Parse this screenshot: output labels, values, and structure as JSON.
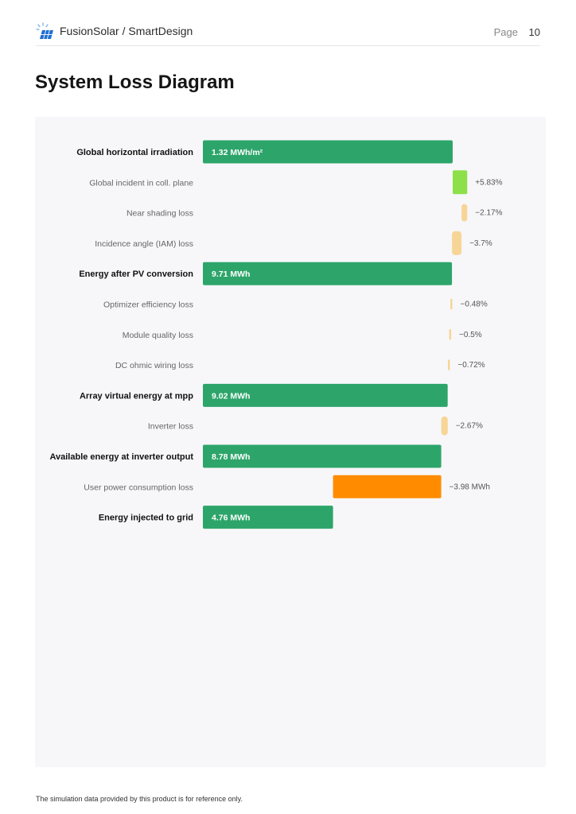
{
  "header": {
    "brand": "FusionSolar / SmartDesign",
    "page_label": "Page",
    "page_number": "10",
    "logo_icon": "solar-panel-logo-icon"
  },
  "title": "System Loss Diagram",
  "footnote": "The simulation data provided by this product is for reference only.",
  "colors": {
    "energy": "#2da56a",
    "gain": "#8ee04a",
    "loss": "#f7d597",
    "consumption": "#ff8c00"
  },
  "chart_data": {
    "type": "bar",
    "subtype": "waterfall",
    "grid": false,
    "legend": "none",
    "rows": [
      {
        "label": "Global horizontal irradiation",
        "kind": "energy",
        "value_label": "1.32 MWh/m²",
        "start": 0,
        "end": 100
      },
      {
        "label": "Global incident in coll. plane",
        "kind": "gain",
        "value_label": "+5.83%",
        "start": 100,
        "end": 105.83
      },
      {
        "label": "Near shading loss",
        "kind": "loss",
        "value_label": "−2.17%",
        "start": 105.83,
        "end": 103.53
      },
      {
        "label": "Incidence angle (IAM) loss",
        "kind": "loss",
        "value_label": "−3.7%",
        "start": 103.53,
        "end": 99.7
      },
      {
        "label": "Energy after PV conversion",
        "kind": "energy",
        "value_label": "9.71 MWh",
        "start": 0,
        "end": 99.7
      },
      {
        "label": "Optimizer efficiency loss",
        "kind": "loss",
        "value_label": "−0.48%",
        "start": 99.7,
        "end": 99.22
      },
      {
        "label": "Module quality loss",
        "kind": "loss",
        "value_label": "−0.5%",
        "start": 99.22,
        "end": 98.72
      },
      {
        "label": "DC ohmic wiring loss",
        "kind": "loss",
        "value_label": "−0.72%",
        "start": 98.72,
        "end": 98.0
      },
      {
        "label": "Array virtual energy at mpp",
        "kind": "energy",
        "value_label": "9.02 MWh",
        "start": 0,
        "end": 98.0
      },
      {
        "label": "Inverter loss",
        "kind": "loss",
        "value_label": "−2.67%",
        "start": 98.0,
        "end": 95.4
      },
      {
        "label": "Available energy at inverter output",
        "kind": "energy",
        "value_label": "8.78 MWh",
        "start": 0,
        "end": 95.4
      },
      {
        "label": "User power consumption loss",
        "kind": "consumption",
        "value_label": "−3.98 MWh",
        "start": 95.4,
        "end": 52.1
      },
      {
        "label": "Energy injected to grid",
        "kind": "energy",
        "value_label": "4.76 MWh",
        "start": 0,
        "end": 52.1
      }
    ]
  }
}
